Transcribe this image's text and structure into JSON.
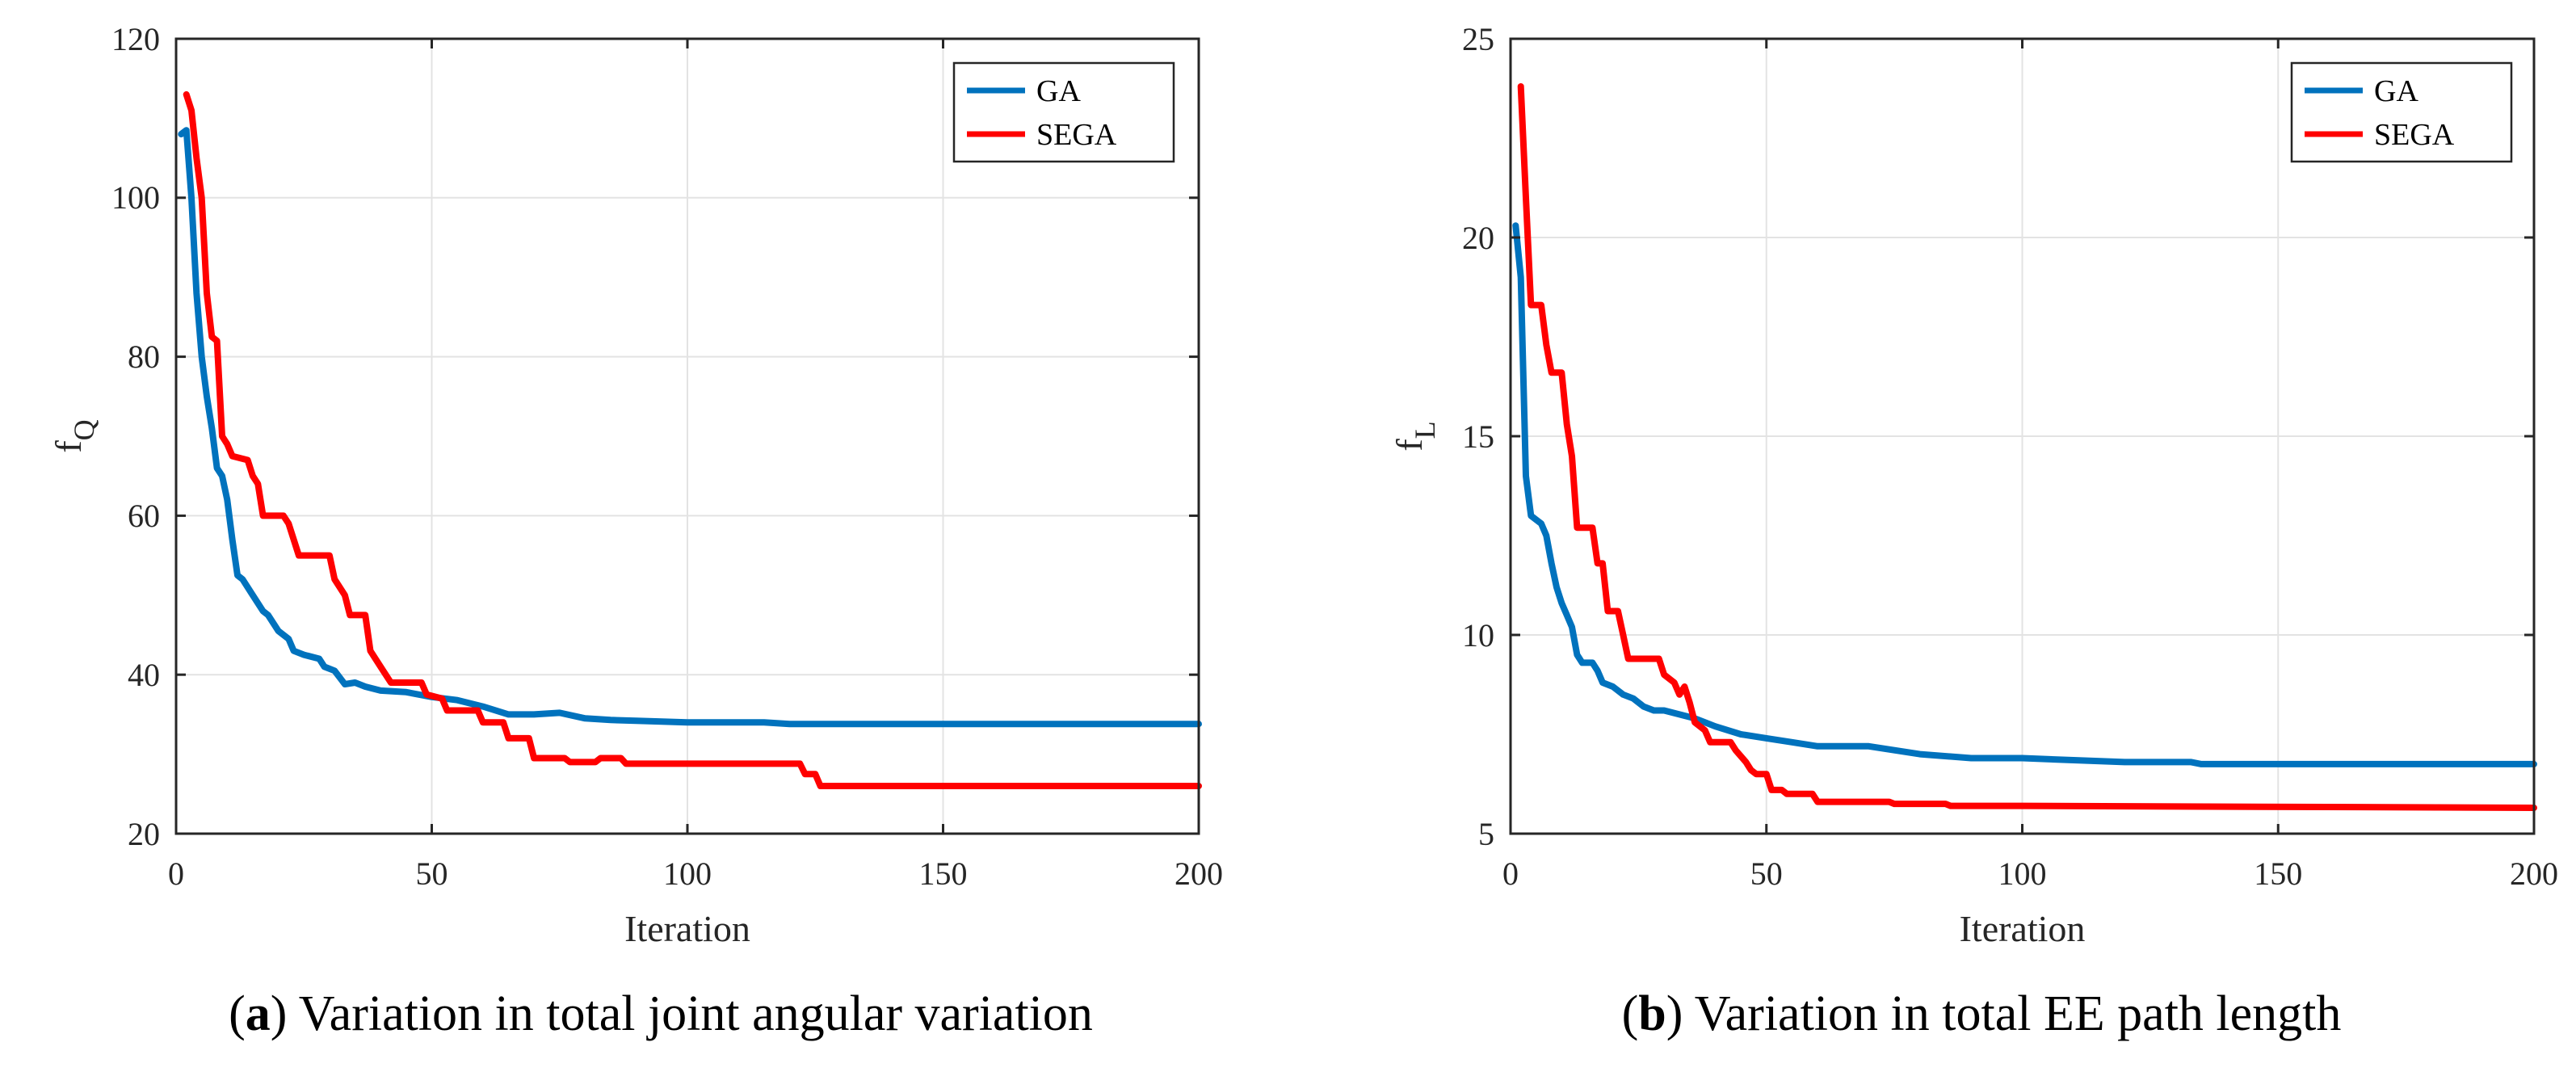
{
  "chart_data": [
    {
      "type": "line",
      "caption_letter": "a",
      "caption_text": " Variation in total joint angular variation",
      "xlabel": "Iteration",
      "ylabel_main": "f",
      "ylabel_sub": "Q",
      "xlim": [
        0,
        200
      ],
      "ylim": [
        20,
        120
      ],
      "xticks": [
        "0",
        "50",
        "100",
        "150",
        "200"
      ],
      "yticks": [
        "20",
        "40",
        "60",
        "80",
        "100",
        "120"
      ],
      "xtick_values": [
        0,
        50,
        100,
        150,
        200
      ],
      "ytick_values": [
        20,
        40,
        60,
        80,
        100,
        120
      ],
      "grid": true,
      "legend_position": "top-right",
      "series": [
        {
          "name": "GA",
          "color": "#0072BD",
          "points": [
            [
              1,
              108
            ],
            [
              2,
              108.5
            ],
            [
              3,
              100
            ],
            [
              4,
              88
            ],
            [
              5,
              80
            ],
            [
              6,
              75
            ],
            [
              7,
              71
            ],
            [
              8,
              66
            ],
            [
              9,
              65
            ],
            [
              10,
              62
            ],
            [
              11,
              57
            ],
            [
              12,
              52.5
            ],
            [
              13,
              52
            ],
            [
              15,
              50
            ],
            [
              17,
              48
            ],
            [
              18,
              47.5
            ],
            [
              20,
              45.5
            ],
            [
              22,
              44.5
            ],
            [
              23,
              43
            ],
            [
              25,
              42.5
            ],
            [
              28,
              42
            ],
            [
              29,
              41
            ],
            [
              31,
              40.5
            ],
            [
              33,
              38.8
            ],
            [
              35,
              39
            ],
            [
              37,
              38.5
            ],
            [
              40,
              38
            ],
            [
              45,
              37.8
            ],
            [
              50,
              37.2
            ],
            [
              55,
              36.8
            ],
            [
              60,
              36
            ],
            [
              65,
              35
            ],
            [
              70,
              35
            ],
            [
              75,
              35.2
            ],
            [
              80,
              34.5
            ],
            [
              85,
              34.3
            ],
            [
              90,
              34.2
            ],
            [
              95,
              34.1
            ],
            [
              100,
              34
            ],
            [
              105,
              34
            ],
            [
              110,
              34
            ],
            [
              115,
              34
            ],
            [
              120,
              33.8
            ],
            [
              200,
              33.8
            ]
          ]
        },
        {
          "name": "SEGA",
          "color": "#FF0000",
          "points": [
            [
              2,
              113
            ],
            [
              3,
              111
            ],
            [
              4,
              105
            ],
            [
              5,
              100
            ],
            [
              6,
              88
            ],
            [
              7,
              82.5
            ],
            [
              8,
              82
            ],
            [
              9,
              70
            ],
            [
              10,
              69
            ],
            [
              11,
              67.5
            ],
            [
              14,
              67
            ],
            [
              15,
              65
            ],
            [
              16,
              64
            ],
            [
              17,
              60
            ],
            [
              21,
              60
            ],
            [
              22,
              59
            ],
            [
              23,
              57
            ],
            [
              24,
              55
            ],
            [
              30,
              55
            ],
            [
              31,
              52
            ],
            [
              33,
              50
            ],
            [
              34,
              47.5
            ],
            [
              37,
              47.5
            ],
            [
              38,
              43
            ],
            [
              40,
              41
            ],
            [
              42,
              39
            ],
            [
              48,
              39
            ],
            [
              49,
              37.5
            ],
            [
              52,
              37
            ],
            [
              53,
              35.5
            ],
            [
              59,
              35.5
            ],
            [
              60,
              34
            ],
            [
              64,
              34
            ],
            [
              65,
              32
            ],
            [
              69,
              32
            ],
            [
              70,
              29.5
            ],
            [
              76,
              29.5
            ],
            [
              77,
              29
            ],
            [
              82,
              29
            ],
            [
              83,
              29.5
            ],
            [
              87,
              29.5
            ],
            [
              88,
              28.8
            ],
            [
              122,
              28.8
            ],
            [
              123,
              27.5
            ],
            [
              125,
              27.5
            ],
            [
              126,
              26
            ],
            [
              200,
              26
            ]
          ]
        }
      ]
    },
    {
      "type": "line",
      "caption_letter": "b",
      "caption_text": " Variation in total EE path length",
      "xlabel": "Iteration",
      "ylabel_main": "f",
      "ylabel_sub": "L",
      "xlim": [
        0,
        200
      ],
      "ylim": [
        5,
        25
      ],
      "xticks": [
        "0",
        "50",
        "100",
        "150",
        "200"
      ],
      "yticks": [
        "5",
        "10",
        "15",
        "20",
        "25"
      ],
      "xtick_values": [
        0,
        50,
        100,
        150,
        200
      ],
      "ytick_values": [
        5,
        10,
        15,
        20,
        25
      ],
      "grid": true,
      "legend_position": "top-right",
      "series": [
        {
          "name": "GA",
          "color": "#0072BD",
          "points": [
            [
              1,
              20.3
            ],
            [
              2,
              19
            ],
            [
              3,
              14
            ],
            [
              4,
              13
            ],
            [
              6,
              12.8
            ],
            [
              7,
              12.5
            ],
            [
              8,
              11.8
            ],
            [
              9,
              11.2
            ],
            [
              10,
              10.8
            ],
            [
              11,
              10.5
            ],
            [
              12,
              10.2
            ],
            [
              13,
              9.5
            ],
            [
              14,
              9.3
            ],
            [
              16,
              9.3
            ],
            [
              17,
              9.1
            ],
            [
              18,
              8.8
            ],
            [
              20,
              8.7
            ],
            [
              22,
              8.5
            ],
            [
              24,
              8.4
            ],
            [
              26,
              8.2
            ],
            [
              28,
              8.1
            ],
            [
              30,
              8.1
            ],
            [
              33,
              8
            ],
            [
              36,
              7.9
            ],
            [
              40,
              7.7
            ],
            [
              45,
              7.5
            ],
            [
              50,
              7.4
            ],
            [
              55,
              7.3
            ],
            [
              60,
              7.2
            ],
            [
              70,
              7.2
            ],
            [
              80,
              7
            ],
            [
              90,
              6.9
            ],
            [
              100,
              6.9
            ],
            [
              110,
              6.85
            ],
            [
              120,
              6.8
            ],
            [
              133,
              6.8
            ],
            [
              135,
              6.75
            ],
            [
              200,
              6.75
            ]
          ]
        },
        {
          "name": "SEGA",
          "color": "#FF0000",
          "points": [
            [
              2,
              23.8
            ],
            [
              3,
              21
            ],
            [
              4,
              18.3
            ],
            [
              6,
              18.3
            ],
            [
              7,
              17.3
            ],
            [
              8,
              16.6
            ],
            [
              10,
              16.6
            ],
            [
              11,
              15.3
            ],
            [
              12,
              14.5
            ],
            [
              13,
              12.7
            ],
            [
              16,
              12.7
            ],
            [
              17,
              11.8
            ],
            [
              18,
              11.8
            ],
            [
              19,
              10.6
            ],
            [
              21,
              10.6
            ],
            [
              22,
              10
            ],
            [
              23,
              9.4
            ],
            [
              29,
              9.4
            ],
            [
              30,
              9
            ],
            [
              32,
              8.8
            ],
            [
              33,
              8.5
            ],
            [
              34,
              8.7
            ],
            [
              35,
              8.3
            ],
            [
              36,
              7.8
            ],
            [
              38,
              7.6
            ],
            [
              39,
              7.3
            ],
            [
              43,
              7.3
            ],
            [
              44,
              7.1
            ],
            [
              46,
              6.8
            ],
            [
              47,
              6.6
            ],
            [
              48,
              6.5
            ],
            [
              50,
              6.5
            ],
            [
              51,
              6.1
            ],
            [
              53,
              6.1
            ],
            [
              54,
              6
            ],
            [
              59,
              6
            ],
            [
              60,
              5.8
            ],
            [
              74,
              5.8
            ],
            [
              75,
              5.75
            ],
            [
              85,
              5.75
            ],
            [
              86,
              5.7
            ],
            [
              100,
              5.7
            ],
            [
              200,
              5.65
            ]
          ]
        }
      ]
    }
  ]
}
